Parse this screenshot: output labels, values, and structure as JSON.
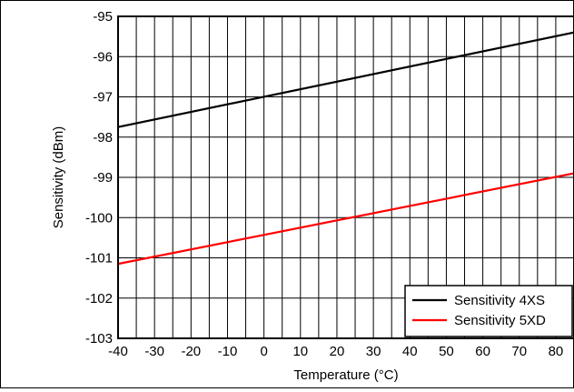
{
  "chart_data": {
    "type": "line",
    "title": "",
    "xlabel": "Temperature (°C)",
    "ylabel": "Sensitivity (dBm)",
    "xlim": [
      -40,
      85
    ],
    "ylim": [
      -103,
      -95
    ],
    "x_ticks": [
      "-40",
      "-30",
      "-20",
      "-10",
      "0",
      "10",
      "20",
      "30",
      "40",
      "50",
      "60",
      "70",
      "80"
    ],
    "y_ticks": [
      "-95",
      "-96",
      "-97",
      "-98",
      "-99",
      "-100",
      "-101",
      "-102",
      "-103"
    ],
    "x_tick_values": [
      -40,
      -30,
      -20,
      -10,
      0,
      10,
      20,
      30,
      40,
      50,
      60,
      70,
      80
    ],
    "y_tick_values": [
      -95,
      -96,
      -97,
      -98,
      -99,
      -100,
      -101,
      -102,
      -103
    ],
    "grid": true,
    "minor_x_grid_step": 5,
    "legend_position": "bottom-right",
    "series": [
      {
        "name": "Sensitivity 4XS",
        "color": "#000000",
        "x": [
          -40,
          85
        ],
        "y": [
          -97.75,
          -95.4
        ]
      },
      {
        "name": "Sensitivity 5XD",
        "color": "#ff0000",
        "x": [
          -40,
          85
        ],
        "y": [
          -101.15,
          -98.9
        ]
      }
    ]
  }
}
